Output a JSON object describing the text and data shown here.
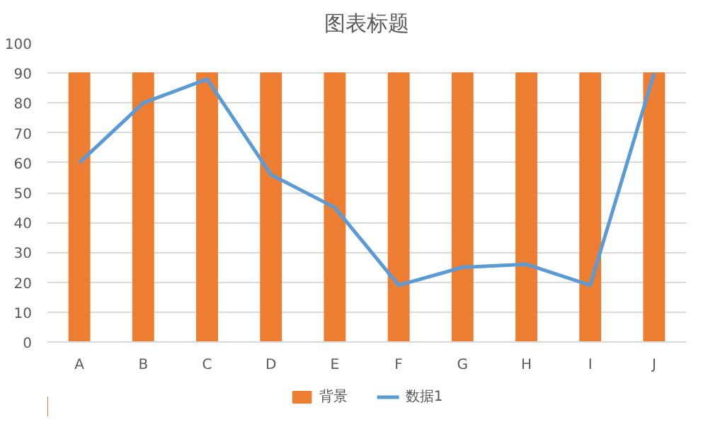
{
  "chart_data": {
    "type": "bar",
    "title": "图表标题",
    "categories": [
      "A",
      "B",
      "C",
      "D",
      "E",
      "F",
      "G",
      "H",
      "I",
      "J"
    ],
    "series": [
      {
        "name": "背景",
        "color": "#ed7d31",
        "values": [
          90,
          90,
          90,
          90,
          90,
          90,
          90,
          90,
          90,
          90
        ]
      },
      {
        "name": "数据1",
        "type": "line",
        "color": "#5b9bd5",
        "values": [
          60,
          80,
          88,
          56,
          45,
          19,
          25,
          26,
          19,
          90
        ]
      }
    ],
    "ylim": [
      0,
      100
    ],
    "yticks": [
      0,
      10,
      20,
      30,
      40,
      50,
      60,
      70,
      80,
      90,
      100
    ],
    "grid": "y",
    "legend": "bottom"
  }
}
